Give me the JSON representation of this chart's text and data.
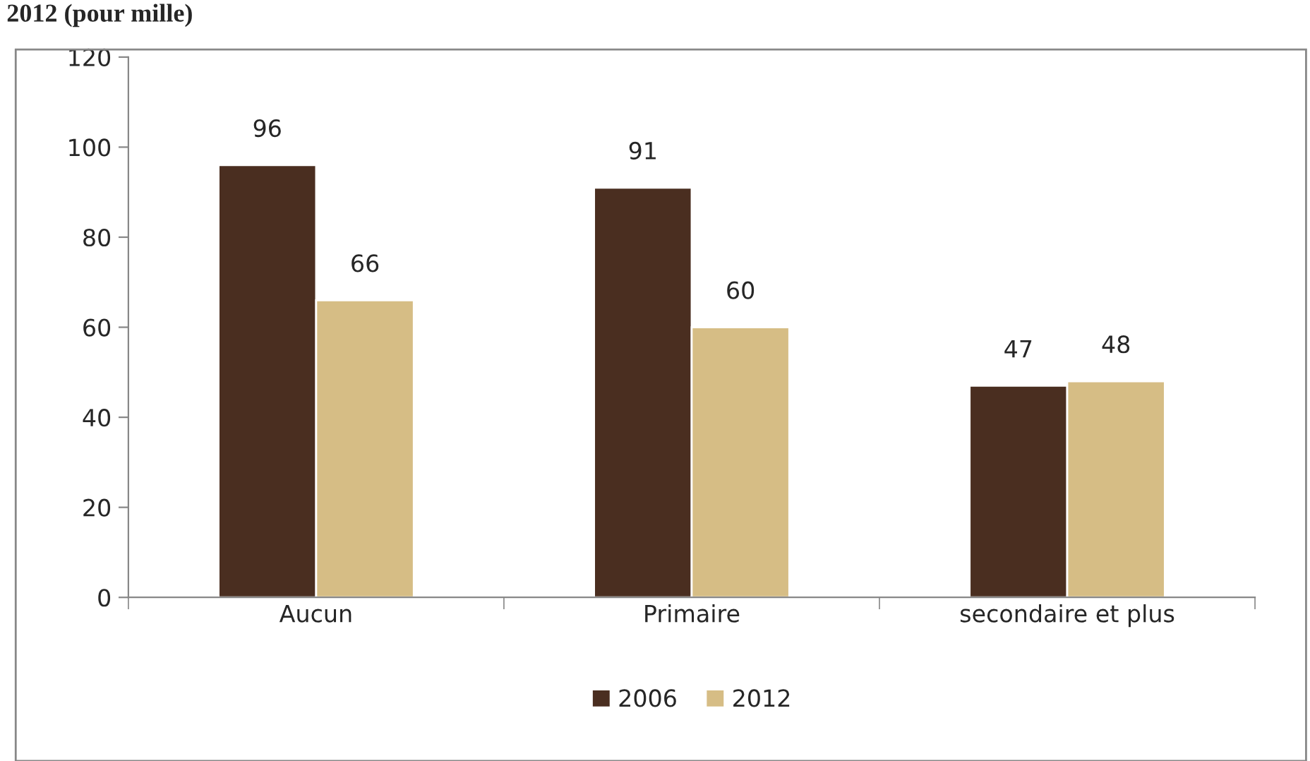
{
  "chart_data": {
    "type": "bar",
    "title": "2012 (pour mille)",
    "categories": [
      "Aucun",
      "Primaire",
      "secondaire et plus"
    ],
    "series": [
      {
        "name": "2006",
        "color": "#4a2e20",
        "values": [
          96,
          91,
          47
        ]
      },
      {
        "name": "2012",
        "color": "#d6bd85",
        "values": [
          66,
          60,
          48
        ]
      }
    ],
    "ylim": [
      0,
      120
    ],
    "yticks": [
      0,
      20,
      40,
      60,
      80,
      100,
      120
    ],
    "grid": false,
    "legend": "bottom",
    "data_labels": true
  }
}
